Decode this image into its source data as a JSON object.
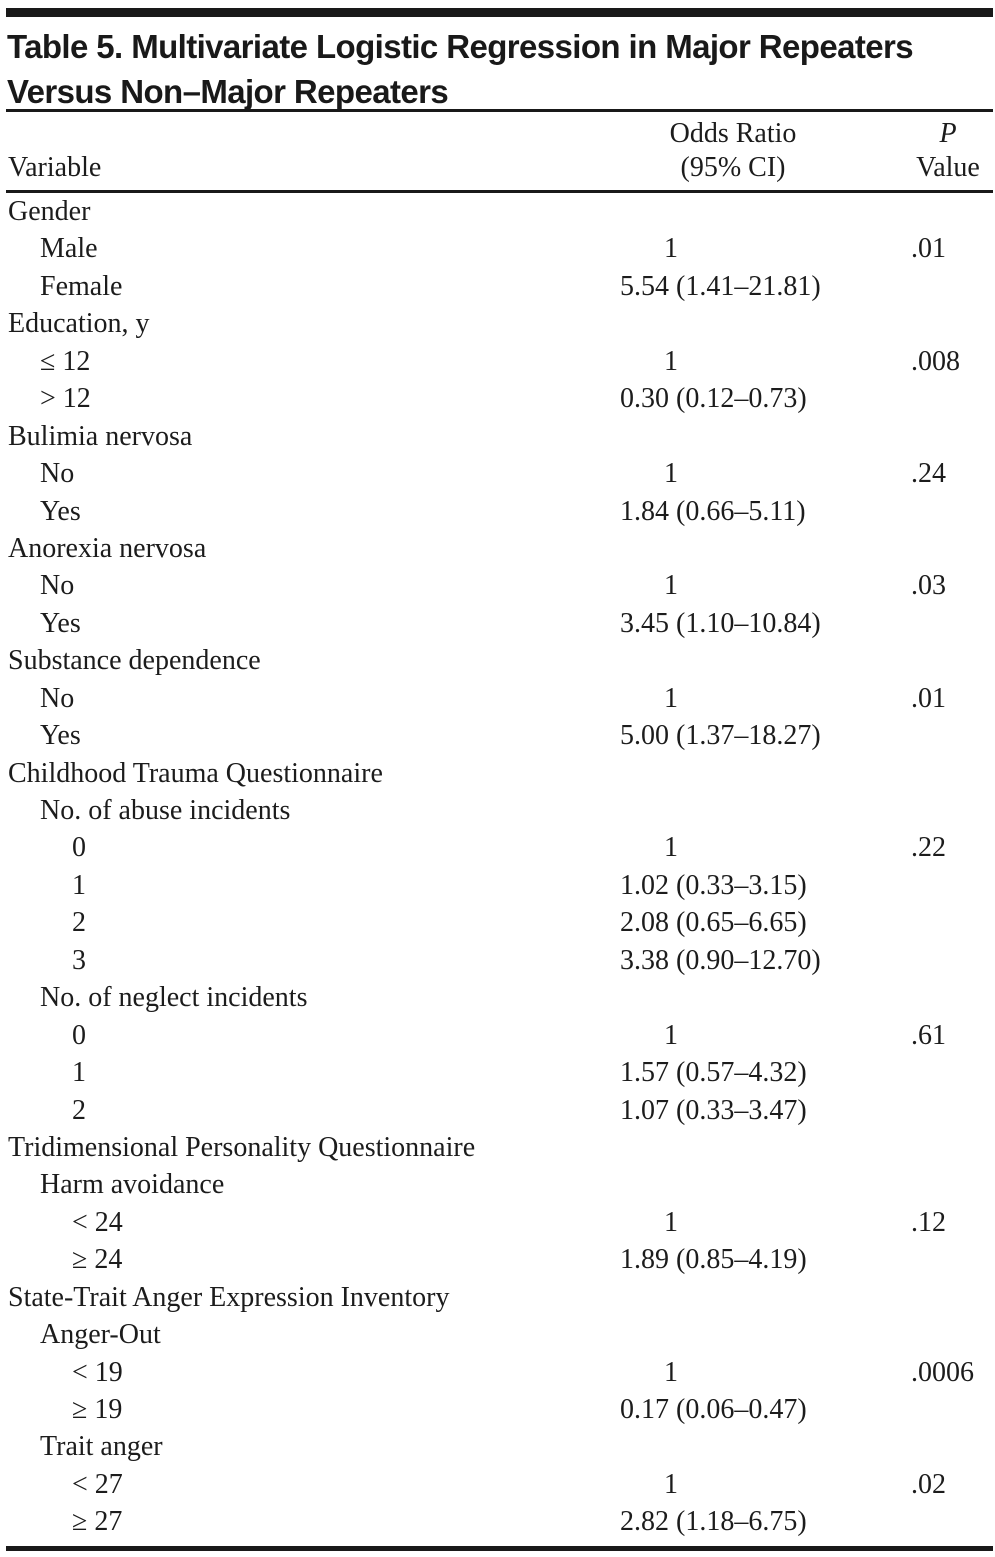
{
  "title": {
    "line1": "Table 5. Multivariate Logistic Regression in Major Repeaters",
    "line2": "Versus Non–Major Repeaters"
  },
  "header": {
    "variable": "Variable",
    "odds_ratio_line1": "Odds Ratio",
    "odds_ratio_line2": "(95% CI)",
    "p_line1": "P",
    "p_line2": "Value"
  },
  "table": {
    "rows": [
      {
        "label": "Gender",
        "indent": 0,
        "odds_ratio": "",
        "p": ""
      },
      {
        "label": "Male",
        "indent": 1,
        "odds_ratio": "1",
        "p": ".01"
      },
      {
        "label": "Female",
        "indent": 1,
        "odds_ratio": "5.54 (1.41–21.81)",
        "p": ""
      },
      {
        "label": "Education, y",
        "indent": 0,
        "odds_ratio": "",
        "p": ""
      },
      {
        "label": "≤ 12",
        "indent": 1,
        "odds_ratio": "1",
        "p": ".008"
      },
      {
        "label": "> 12",
        "indent": 1,
        "odds_ratio": "0.30 (0.12–0.73)",
        "p": ""
      },
      {
        "label": "Bulimia nervosa",
        "indent": 0,
        "odds_ratio": "",
        "p": ""
      },
      {
        "label": "No",
        "indent": 1,
        "odds_ratio": "1",
        "p": ".24"
      },
      {
        "label": "Yes",
        "indent": 1,
        "odds_ratio": "1.84 (0.66–5.11)",
        "p": ""
      },
      {
        "label": "Anorexia nervosa",
        "indent": 0,
        "odds_ratio": "",
        "p": ""
      },
      {
        "label": "No",
        "indent": 1,
        "odds_ratio": "1",
        "p": ".03"
      },
      {
        "label": "Yes",
        "indent": 1,
        "odds_ratio": "3.45 (1.10–10.84)",
        "p": ""
      },
      {
        "label": "Substance dependence",
        "indent": 0,
        "odds_ratio": "",
        "p": ""
      },
      {
        "label": "No",
        "indent": 1,
        "odds_ratio": "1",
        "p": ".01"
      },
      {
        "label": "Yes",
        "indent": 1,
        "odds_ratio": "5.00 (1.37–18.27)",
        "p": ""
      },
      {
        "label": "Childhood Trauma Questionnaire",
        "indent": 0,
        "odds_ratio": "",
        "p": ""
      },
      {
        "label": "No. of abuse incidents",
        "indent": 1,
        "odds_ratio": "",
        "p": ""
      },
      {
        "label": "0",
        "indent": 2,
        "odds_ratio": "1",
        "p": ".22"
      },
      {
        "label": "1",
        "indent": 2,
        "odds_ratio": "1.02 (0.33–3.15)",
        "p": ""
      },
      {
        "label": "2",
        "indent": 2,
        "odds_ratio": "2.08 (0.65–6.65)",
        "p": ""
      },
      {
        "label": "3",
        "indent": 2,
        "odds_ratio": "3.38 (0.90–12.70)",
        "p": ""
      },
      {
        "label": "No. of neglect incidents",
        "indent": 1,
        "odds_ratio": "",
        "p": ""
      },
      {
        "label": "0",
        "indent": 2,
        "odds_ratio": "1",
        "p": ".61"
      },
      {
        "label": "1",
        "indent": 2,
        "odds_ratio": "1.57 (0.57–4.32)",
        "p": ""
      },
      {
        "label": "2",
        "indent": 2,
        "odds_ratio": "1.07 (0.33–3.47)",
        "p": ""
      },
      {
        "label": "Tridimensional Personality Questionnaire",
        "indent": 0,
        "odds_ratio": "",
        "p": ""
      },
      {
        "label": "Harm avoidance",
        "indent": 1,
        "odds_ratio": "",
        "p": ""
      },
      {
        "label": "< 24",
        "indent": 2,
        "odds_ratio": "1",
        "p": ".12"
      },
      {
        "label": "≥ 24",
        "indent": 2,
        "odds_ratio": "1.89 (0.85–4.19)",
        "p": ""
      },
      {
        "label": "State-Trait Anger Expression Inventory",
        "indent": 0,
        "odds_ratio": "",
        "p": ""
      },
      {
        "label": "Anger-Out",
        "indent": 1,
        "odds_ratio": "",
        "p": ""
      },
      {
        "label": "< 19",
        "indent": 2,
        "odds_ratio": "1",
        "p": ".0006"
      },
      {
        "label": "≥ 19",
        "indent": 2,
        "odds_ratio": "0.17 (0.06–0.47)",
        "p": ""
      },
      {
        "label": "Trait anger",
        "indent": 1,
        "odds_ratio": "",
        "p": ""
      },
      {
        "label": "< 27",
        "indent": 2,
        "odds_ratio": "1",
        "p": ".02"
      },
      {
        "label": "≥ 27",
        "indent": 2,
        "odds_ratio": "2.82 (1.18–6.75)",
        "p": ""
      }
    ]
  },
  "colors": {
    "text": "#1c1c1c",
    "rule": "#191919",
    "background": "#ffffff"
  }
}
